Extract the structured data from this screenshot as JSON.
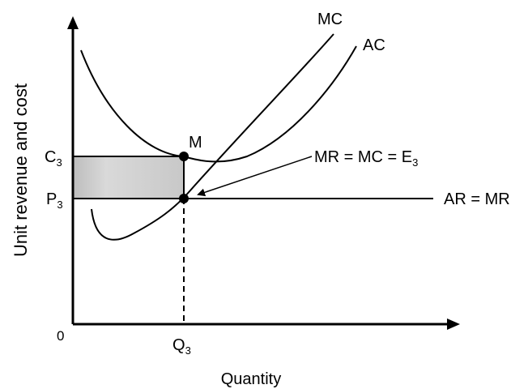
{
  "curves": {
    "mc": "MC",
    "ac": "AC"
  },
  "point_m": "M",
  "y_levels": {
    "c": {
      "main": "C",
      "sub": "3"
    },
    "p": {
      "main": "P",
      "sub": "3"
    }
  },
  "equilibrium": {
    "main": "MR = MC = E",
    "sub": "3"
  },
  "demand_line": "AR = MR",
  "origin": "0",
  "x_level": {
    "main": "Q",
    "sub": "3"
  },
  "axes": {
    "x_label": "Quantity",
    "y_label": "Unit revenue and cost"
  }
}
